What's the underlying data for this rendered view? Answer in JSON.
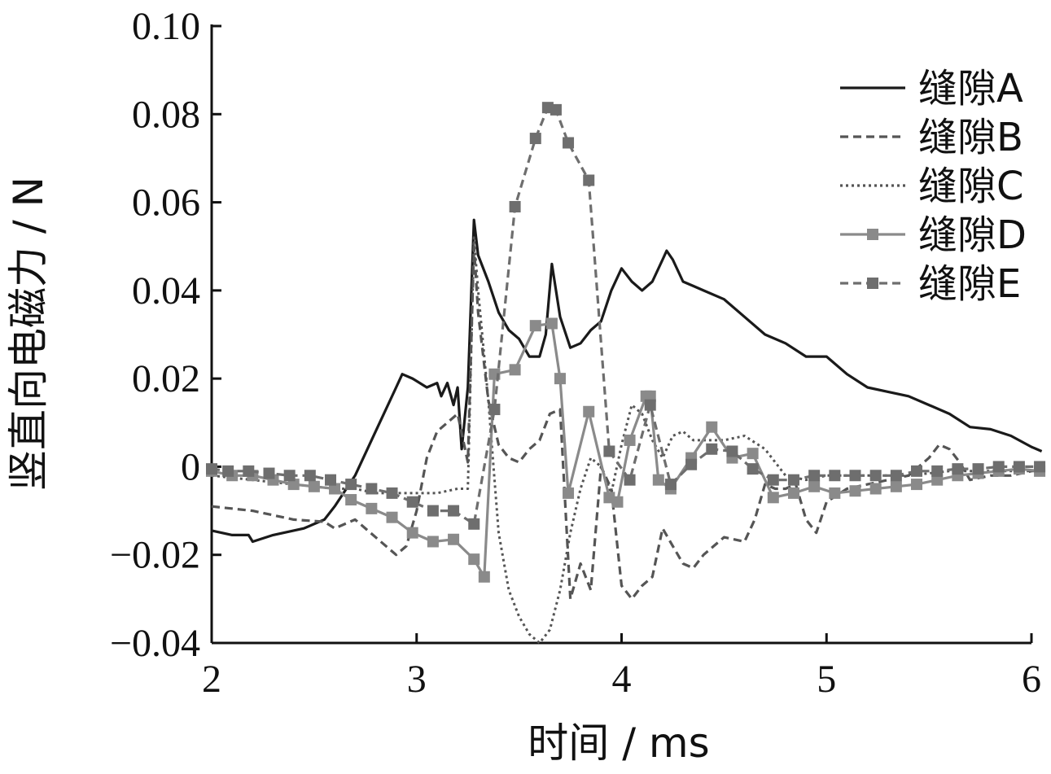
{
  "chart_data": {
    "type": "line",
    "title": "",
    "xlabel": "时间 / ms",
    "ylabel": "竖直向电磁力 / N",
    "xlim": [
      2,
      6
    ],
    "ylim": [
      -0.04,
      0.1
    ],
    "xticks": [
      2,
      3,
      4,
      5,
      6
    ],
    "yticks": [
      -0.04,
      -0.02,
      0,
      0.02,
      0.04,
      0.06,
      0.08,
      0.1
    ],
    "xtick_labels": [
      "2",
      "3",
      "4",
      "5",
      "6"
    ],
    "ytick_labels": [
      "−0.04",
      "−0.02",
      "0",
      "0.02",
      "0.04",
      "0.06",
      "0.08",
      "0.10"
    ],
    "grid": false,
    "legend_position": "top-right",
    "series": [
      {
        "name": "缝隙A",
        "color": "#1a1a1a",
        "style": "solid",
        "marker": "none",
        "x": [
          2.0,
          2.1,
          2.18,
          2.2,
          2.3,
          2.45,
          2.55,
          2.6,
          2.7,
          2.8,
          2.9,
          2.93,
          2.98,
          3.05,
          3.1,
          3.12,
          3.15,
          3.18,
          3.2,
          3.22,
          3.25,
          3.28,
          3.3,
          3.35,
          3.4,
          3.45,
          3.5,
          3.55,
          3.6,
          3.63,
          3.66,
          3.7,
          3.75,
          3.8,
          3.85,
          3.9,
          3.95,
          4.0,
          4.05,
          4.1,
          4.15,
          4.2,
          4.22,
          4.25,
          4.3,
          4.35,
          4.4,
          4.5,
          4.6,
          4.7,
          4.8,
          4.9,
          5.0,
          5.1,
          5.2,
          5.3,
          5.4,
          5.5,
          5.6,
          5.7,
          5.8,
          5.9,
          6.0,
          6.05
        ],
        "y": [
          -0.0145,
          -0.0155,
          -0.0155,
          -0.017,
          -0.0155,
          -0.014,
          -0.012,
          -0.009,
          -0.002,
          0.008,
          0.018,
          0.021,
          0.02,
          0.018,
          0.019,
          0.016,
          0.019,
          0.014,
          0.018,
          0.004,
          0.018,
          0.056,
          0.048,
          0.042,
          0.035,
          0.031,
          0.029,
          0.025,
          0.025,
          0.03,
          0.046,
          0.034,
          0.027,
          0.028,
          0.031,
          0.033,
          0.04,
          0.045,
          0.042,
          0.04,
          0.042,
          0.047,
          0.049,
          0.047,
          0.042,
          0.041,
          0.04,
          0.038,
          0.034,
          0.03,
          0.028,
          0.025,
          0.025,
          0.021,
          0.018,
          0.017,
          0.016,
          0.014,
          0.012,
          0.009,
          0.0085,
          0.007,
          0.0045,
          0.0035
        ]
      },
      {
        "name": "缝隙B",
        "color": "#555555",
        "style": "dashed",
        "marker": "none",
        "x": [
          2.0,
          2.2,
          2.4,
          2.55,
          2.6,
          2.7,
          2.8,
          2.9,
          2.95,
          3.0,
          3.05,
          3.1,
          3.15,
          3.2,
          3.25,
          3.28,
          3.3,
          3.35,
          3.4,
          3.45,
          3.5,
          3.55,
          3.6,
          3.65,
          3.7,
          3.72,
          3.75,
          3.8,
          3.85,
          3.9,
          3.95,
          4.0,
          4.05,
          4.1,
          4.15,
          4.2,
          4.25,
          4.3,
          4.35,
          4.4,
          4.45,
          4.5,
          4.6,
          4.65,
          4.7,
          4.75,
          4.8,
          4.85,
          4.9,
          4.95,
          5.0,
          5.1,
          5.2,
          5.3,
          5.4,
          5.5,
          5.55,
          5.6,
          5.65,
          5.7,
          5.8,
          5.9,
          6.0,
          6.05
        ],
        "y": [
          -0.009,
          -0.01,
          -0.012,
          -0.0125,
          -0.014,
          -0.012,
          -0.016,
          -0.02,
          -0.018,
          -0.01,
          0.002,
          0.008,
          0.01,
          0.012,
          0.001,
          0.05,
          0.035,
          0.015,
          0.005,
          0.002,
          0.001,
          0.004,
          0.006,
          0.012,
          0.013,
          -0.004,
          -0.03,
          -0.022,
          -0.028,
          0.0,
          -0.005,
          -0.027,
          -0.03,
          -0.027,
          -0.025,
          -0.014,
          -0.018,
          -0.022,
          -0.023,
          -0.02,
          -0.018,
          -0.016,
          -0.017,
          -0.012,
          -0.004,
          -0.005,
          -0.005,
          -0.004,
          -0.012,
          -0.015,
          -0.008,
          -0.005,
          -0.004,
          -0.003,
          -0.002,
          0.002,
          0.005,
          0.004,
          0.001,
          -0.003,
          -0.002,
          -0.002,
          -0.001,
          -0.0005
        ]
      },
      {
        "name": "缝隙C",
        "color": "#555555",
        "style": "dotted",
        "marker": "none",
        "x": [
          2.0,
          2.2,
          2.4,
          2.6,
          2.7,
          2.8,
          2.9,
          3.0,
          3.1,
          3.2,
          3.25,
          3.28,
          3.3,
          3.35,
          3.4,
          3.45,
          3.5,
          3.55,
          3.6,
          3.65,
          3.7,
          3.75,
          3.8,
          3.85,
          3.9,
          3.95,
          4.0,
          4.05,
          4.1,
          4.15,
          4.2,
          4.25,
          4.3,
          4.35,
          4.4,
          4.5,
          4.6,
          4.7,
          4.8,
          4.9,
          5.0,
          5.2,
          5.4,
          5.6,
          5.8,
          6.0,
          6.05
        ],
        "y": [
          -0.002,
          -0.003,
          -0.004,
          -0.005,
          -0.005,
          -0.006,
          -0.006,
          -0.006,
          -0.006,
          -0.005,
          -0.005,
          0.052,
          0.04,
          0.015,
          -0.015,
          -0.028,
          -0.034,
          -0.038,
          -0.04,
          -0.037,
          -0.028,
          -0.015,
          -0.005,
          0.002,
          0.0,
          -0.006,
          0.005,
          0.014,
          0.012,
          0.006,
          0.002,
          0.007,
          0.008,
          0.006,
          0.006,
          0.006,
          0.007,
          0.004,
          -0.002,
          -0.003,
          -0.002,
          -0.002,
          -0.002,
          -0.001,
          -0.001,
          -0.001,
          -0.001
        ]
      },
      {
        "name": "缝隙D",
        "color": "#8a8a8a",
        "style": "solid",
        "marker": "square",
        "x": [
          2.0,
          2.1,
          2.2,
          2.3,
          2.4,
          2.5,
          2.6,
          2.68,
          2.78,
          2.88,
          2.98,
          3.08,
          3.18,
          3.28,
          3.33,
          3.38,
          3.48,
          3.58,
          3.66,
          3.7,
          3.74,
          3.84,
          3.94,
          3.98,
          4.04,
          4.12,
          4.14,
          4.18,
          4.24,
          4.34,
          4.44,
          4.54,
          4.64,
          4.74,
          4.84,
          4.94,
          5.04,
          5.14,
          5.24,
          5.34,
          5.44,
          5.54,
          5.64,
          5.74,
          5.84,
          5.94,
          6.04
        ],
        "y": [
          -0.001,
          -0.002,
          -0.002,
          -0.003,
          -0.004,
          -0.0045,
          -0.005,
          -0.0075,
          -0.0095,
          -0.0115,
          -0.015,
          -0.017,
          -0.0165,
          -0.021,
          -0.025,
          0.021,
          0.022,
          0.032,
          0.0325,
          0.02,
          -0.006,
          0.0125,
          -0.007,
          -0.008,
          0.006,
          0.016,
          0.016,
          -0.003,
          -0.005,
          0.002,
          0.009,
          0.002,
          0.003,
          -0.007,
          -0.006,
          -0.0045,
          -0.006,
          -0.0055,
          -0.005,
          -0.0045,
          -0.004,
          -0.003,
          -0.002,
          -0.0015,
          -0.001,
          -0.0005,
          -0.001
        ]
      },
      {
        "name": "缝隙E",
        "color": "#6e6e6e",
        "style": "dashed",
        "marker": "square",
        "x": [
          2.0,
          2.08,
          2.18,
          2.28,
          2.38,
          2.48,
          2.58,
          2.68,
          2.78,
          2.88,
          2.98,
          3.08,
          3.18,
          3.28,
          3.38,
          3.48,
          3.58,
          3.64,
          3.68,
          3.74,
          3.84,
          3.94,
          4.04,
          4.14,
          4.24,
          4.34,
          4.44,
          4.54,
          4.64,
          4.74,
          4.84,
          4.94,
          5.04,
          5.14,
          5.24,
          5.34,
          5.44,
          5.54,
          5.64,
          5.74,
          5.84,
          5.94,
          6.04
        ],
        "y": [
          -0.0005,
          -0.001,
          -0.001,
          -0.0015,
          -0.002,
          -0.002,
          -0.003,
          -0.004,
          -0.005,
          -0.006,
          -0.008,
          -0.01,
          -0.01,
          -0.013,
          0.013,
          0.059,
          0.0745,
          0.0815,
          0.081,
          0.0735,
          0.065,
          0.0035,
          -0.003,
          0.014,
          -0.004,
          0.0005,
          0.004,
          0.0035,
          -0.0005,
          -0.003,
          -0.003,
          -0.002,
          -0.002,
          -0.002,
          -0.002,
          -0.002,
          -0.001,
          -0.001,
          -0.0005,
          -0.0005,
          0.0,
          0.0,
          0.0
        ]
      }
    ]
  }
}
